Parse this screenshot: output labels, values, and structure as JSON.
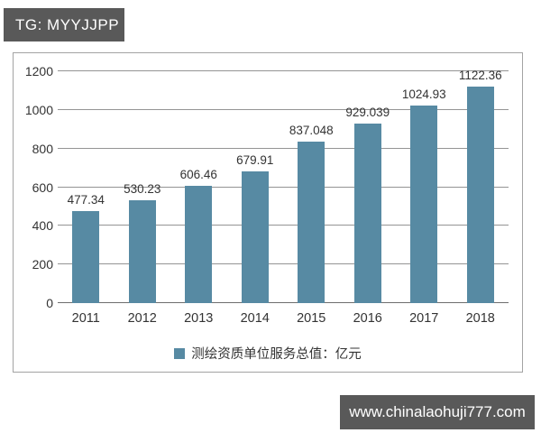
{
  "header": {
    "tag_label": "TG: MYYJJPP"
  },
  "watermark": {
    "url_label": "www.chinalaohuji777.com"
  },
  "colors": {
    "bar": "#578aa3",
    "badge_bg": "#595959",
    "watermark_bg": "#595959",
    "grid": "#949494",
    "axis": "#6e6e6e",
    "text": "#333333",
    "border": "#a3a3a3"
  },
  "chart_data": {
    "type": "bar",
    "title": "",
    "categories": [
      "2011",
      "2012",
      "2013",
      "2014",
      "2015",
      "2016",
      "2017",
      "2018"
    ],
    "values": [
      477.34,
      530.23,
      606.46,
      679.91,
      837.048,
      929.039,
      1024.93,
      1122.36
    ],
    "value_labels": [
      "477.34",
      "530.23",
      "606.46",
      "679.91",
      "837.048",
      "929.039",
      "1024.93",
      "1122.36"
    ],
    "legend": "测绘资质单位服务总值：亿元",
    "xlabel": "",
    "ylabel": "",
    "ylim": [
      0,
      1200
    ],
    "yticks": [
      0,
      200,
      400,
      600,
      800,
      1000,
      1200
    ],
    "grid": true,
    "legend_position": "bottom"
  }
}
